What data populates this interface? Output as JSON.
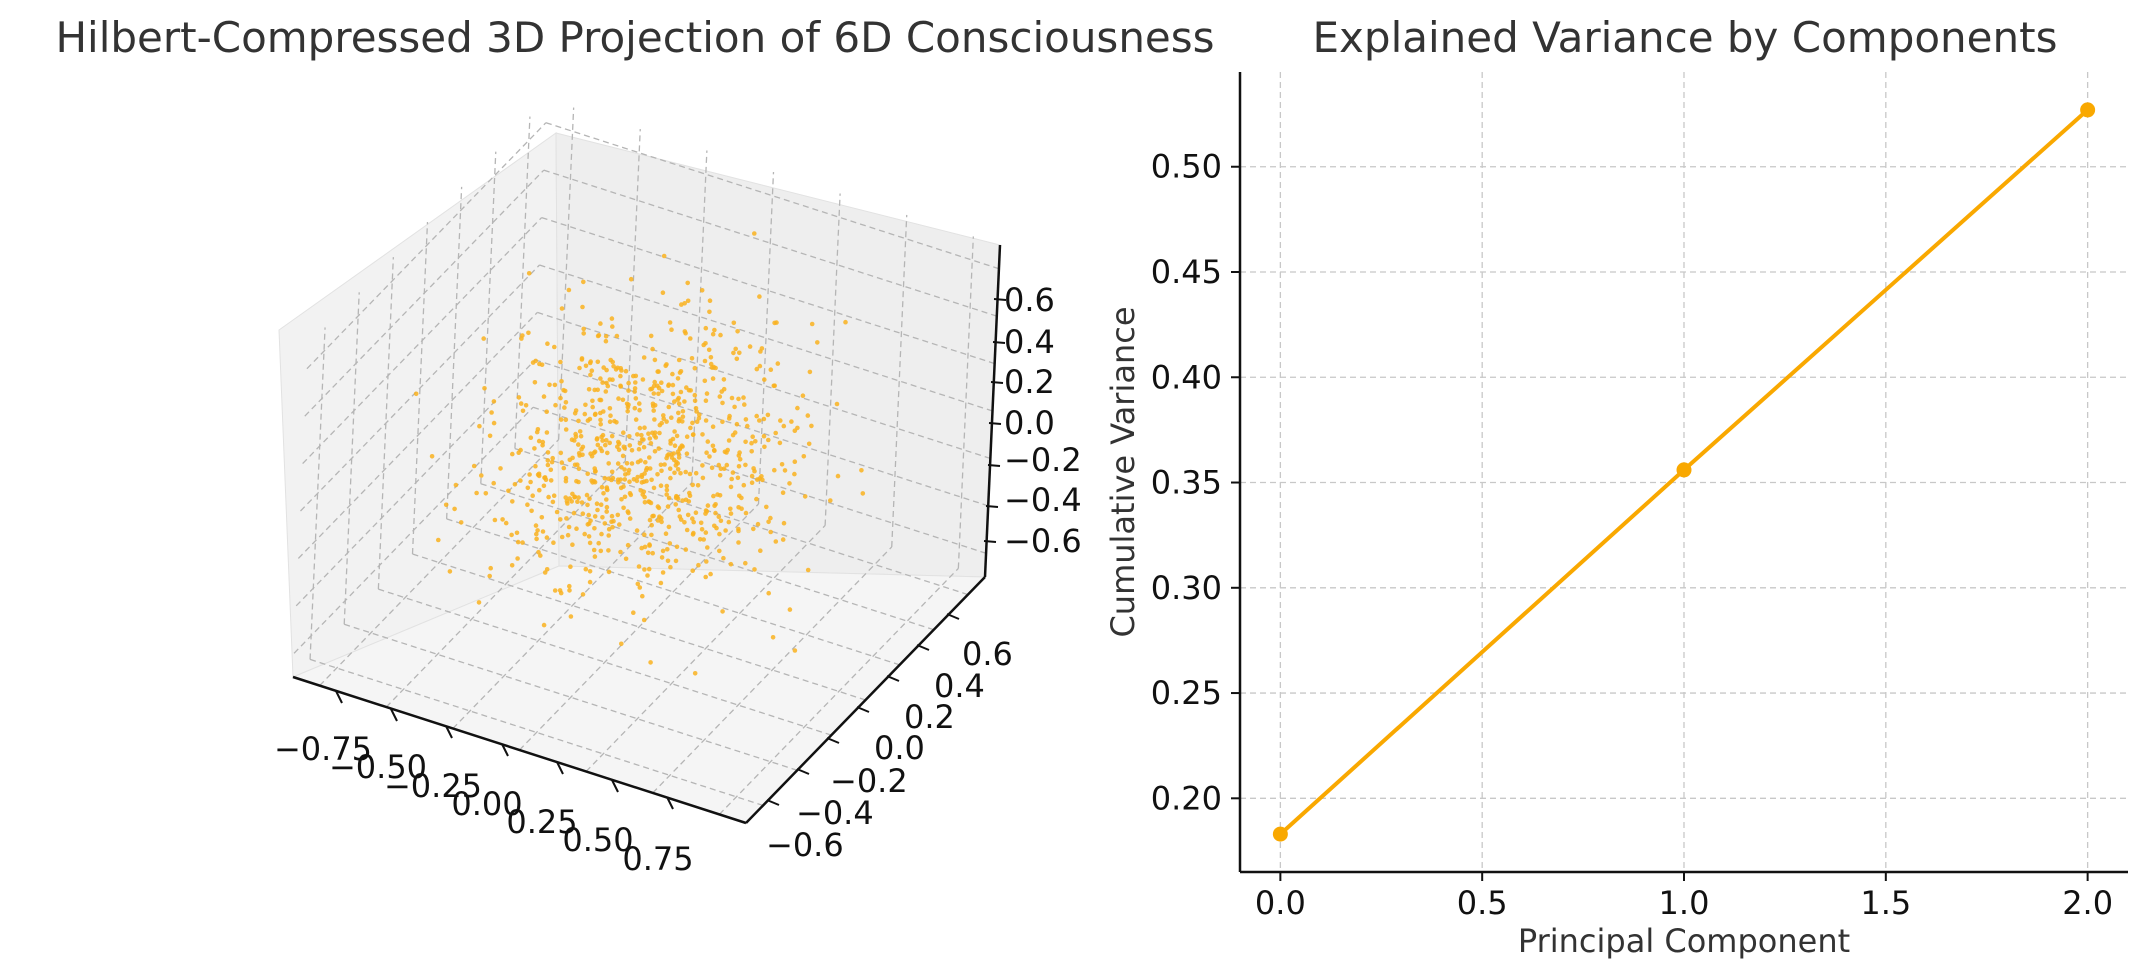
{
  "chart_data": [
    {
      "type": "scatter",
      "subtype": "3d",
      "title": "Hilbert-Compressed 3D Projection of 6D Consciousness",
      "xlabel": "",
      "ylabel": "",
      "zlabel": "",
      "x_ticks": [
        "−0.75",
        "−0.50",
        "−0.25",
        "0.00",
        "0.25",
        "0.50",
        "0.75"
      ],
      "y_ticks": [
        "−0.6",
        "−0.4",
        "−0.2",
        "0.0",
        "0.2",
        "0.4",
        "0.6"
      ],
      "z_ticks": [
        "−0.6",
        "−0.4",
        "−0.2",
        "0.0",
        "0.2",
        "0.4",
        "0.6"
      ],
      "xlim": [
        -0.85,
        0.85
      ],
      "ylim": [
        -0.7,
        0.7
      ],
      "zlim": [
        -0.7,
        0.7
      ],
      "marker_color": "#F9B21E",
      "grid": true,
      "n_points": 800,
      "points_note": "dense cloud of ~800 points roughly centered at origin, spread about ±0.3 per axis"
    },
    {
      "type": "line",
      "title": "Explained Variance by Components",
      "xlabel": "Principal Component",
      "ylabel": "Cumulative Variance",
      "x": [
        0,
        1,
        2
      ],
      "series": [
        {
          "values": [
            0.183,
            0.356,
            0.527
          ]
        }
      ],
      "x_ticks": [
        "0.0",
        "0.5",
        "1.0",
        "1.5",
        "2.0"
      ],
      "y_ticks": [
        "0.20",
        "0.25",
        "0.30",
        "0.35",
        "0.40",
        "0.45",
        "0.50"
      ],
      "xlim": [
        -0.1,
        2.1
      ],
      "ylim": [
        0.165,
        0.545
      ],
      "line_color": "#F9A800",
      "grid": true
    }
  ]
}
